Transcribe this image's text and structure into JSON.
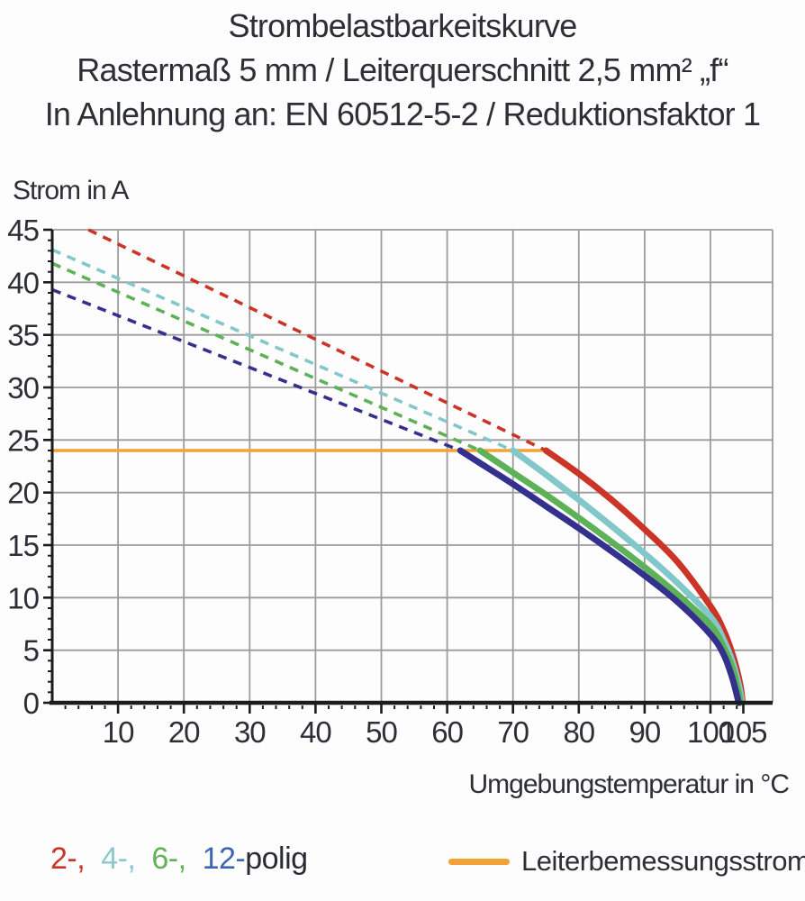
{
  "title": {
    "line1": "Strombelastbarkeitskurve",
    "line2": "Rastermaß 5 mm / Leiterquerschnitt 2,5 mm² „f“",
    "line3": "In Anlehnung an: EN 60512-5-2 / Reduktionsfaktor 1"
  },
  "axes": {
    "y_label": "Strom in A",
    "x_label": "Umgebungstemperatur in °C",
    "x_ticks": [
      10,
      20,
      30,
      40,
      50,
      60,
      70,
      80,
      90,
      100,
      105
    ],
    "y_ticks": [
      0,
      5,
      10,
      15,
      20,
      25,
      30,
      35,
      40,
      45
    ],
    "x_minor_step": 2,
    "y_minor_step": 1
  },
  "legend": {
    "pole_items": [
      {
        "label": "2-,",
        "color": "#cb3527",
        "gap": 18
      },
      {
        "label": "4-,",
        "color": "#8cc8cc",
        "gap": 18
      },
      {
        "label": "6-,",
        "color": "#63b25a",
        "gap": 18
      },
      {
        "label": "12-",
        "color": "#3f66b0",
        "gap": 0
      },
      {
        "label": "polig",
        "color": "#2b2b33",
        "gap": 0
      }
    ],
    "rated_label": "Leiterbemessungsstrom",
    "rated_color": "#f2a237"
  },
  "colors": {
    "grid": "#9c9c9c",
    "axis": "#1c1c1c",
    "text": "#2e2e36",
    "rated_orange": "#f2a237"
  },
  "chart_data": {
    "type": "line",
    "title": "Strombelastbarkeitskurve",
    "xlabel": "Umgebungstemperatur in °C",
    "ylabel": "Strom in A",
    "xlim": [
      0,
      107.5
    ],
    "ylim": [
      0,
      45
    ],
    "grid": true,
    "legend_position": "bottom",
    "rated_line": {
      "name": "Leiterbemessungsstrom",
      "value": 24,
      "x_start": 0,
      "x_end": 75,
      "color": "#f2a237"
    },
    "series": [
      {
        "name": "2-polig",
        "color": "#cb3527",
        "dashed_points": [
          [
            5.5,
            45
          ],
          [
            75,
            24
          ]
        ],
        "solid_points": [
          [
            75,
            24
          ],
          [
            80,
            21.8
          ],
          [
            85,
            19.3
          ],
          [
            90,
            16.5
          ],
          [
            95,
            13.4
          ],
          [
            100,
            9.2
          ],
          [
            102,
            6.9
          ],
          [
            103.5,
            4.3
          ],
          [
            104.5,
            1.8
          ],
          [
            104.9,
            0
          ]
        ]
      },
      {
        "name": "4-polig",
        "color": "#82c7ca",
        "dashed_points": [
          [
            0,
            43.1
          ],
          [
            70,
            24
          ]
        ],
        "solid_points": [
          [
            70,
            24
          ],
          [
            75,
            21.7
          ],
          [
            80,
            19.3
          ],
          [
            85,
            16.8
          ],
          [
            90,
            14.2
          ],
          [
            95,
            11.4
          ],
          [
            100,
            8.2
          ],
          [
            102,
            6.0
          ],
          [
            103.5,
            3.6
          ],
          [
            104.4,
            1.4
          ],
          [
            104.8,
            0
          ]
        ]
      },
      {
        "name": "6-polig",
        "color": "#5db156",
        "dashed_points": [
          [
            0,
            41.8
          ],
          [
            65,
            24
          ]
        ],
        "solid_points": [
          [
            65,
            24
          ],
          [
            70,
            21.9
          ],
          [
            75,
            19.8
          ],
          [
            80,
            17.6
          ],
          [
            85,
            15.3
          ],
          [
            90,
            12.9
          ],
          [
            95,
            10.3
          ],
          [
            100,
            7.4
          ],
          [
            102,
            5.3
          ],
          [
            103.5,
            3.0
          ],
          [
            104.6,
            0
          ]
        ]
      },
      {
        "name": "12-polig",
        "color": "#34308e",
        "dashed_points": [
          [
            0,
            39.3
          ],
          [
            62,
            24
          ]
        ],
        "solid_points": [
          [
            62,
            24
          ],
          [
            65,
            22.8
          ],
          [
            70,
            20.8
          ],
          [
            75,
            18.7
          ],
          [
            80,
            16.6
          ],
          [
            85,
            14.4
          ],
          [
            90,
            12.1
          ],
          [
            95,
            9.6
          ],
          [
            100,
            6.5
          ],
          [
            102,
            4.6
          ],
          [
            103.3,
            2.4
          ],
          [
            104.3,
            0
          ]
        ]
      }
    ]
  }
}
